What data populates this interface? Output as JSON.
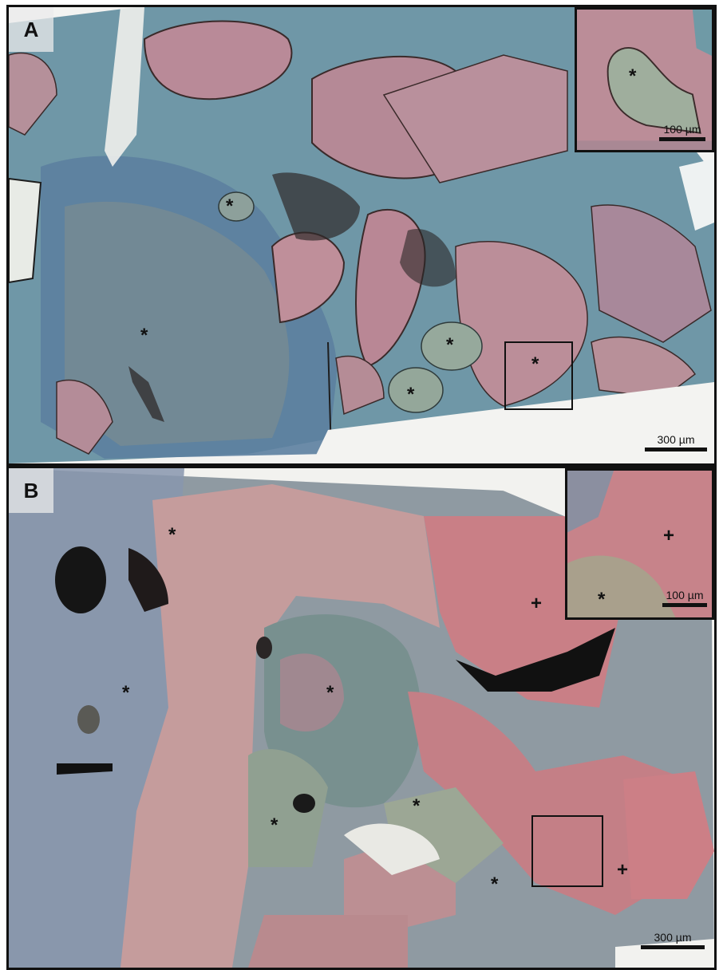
{
  "panels": [
    {
      "letter": "A",
      "scale_label": "300 µm",
      "inset_scale_label": "100 µm",
      "markers": [
        "*",
        "*",
        "*",
        "*",
        "*"
      ],
      "inset_marker": "*"
    },
    {
      "letter": "B",
      "scale_label": "300 µm",
      "inset_scale_label": "100 µm",
      "markers": [
        "*",
        "*",
        "*",
        "*",
        "*",
        "*",
        "*",
        "+",
        "+"
      ],
      "inset_markers": [
        "+",
        "*"
      ]
    }
  ],
  "colors": {
    "matrix_blue": "#5a7e96",
    "bone_pink": "#b98a96",
    "bone_red": "#c9787e",
    "graft_green": "#8fa29a",
    "background": "#f2f2ee"
  }
}
